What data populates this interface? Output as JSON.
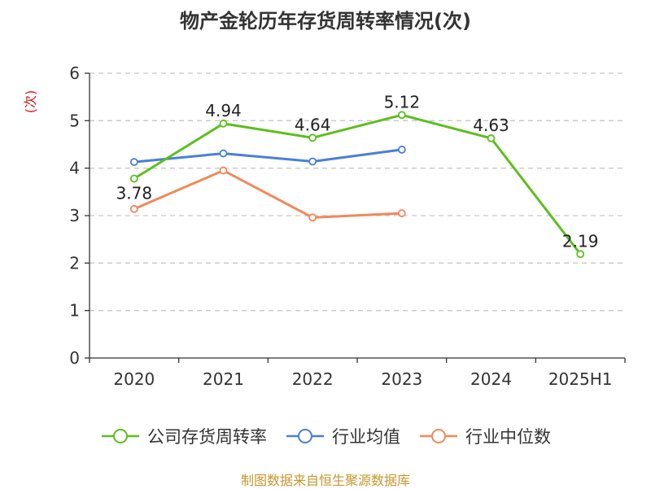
{
  "chart_data": {
    "type": "line",
    "title": "物产金轮历年存货周转率情况(次)",
    "ylabel": "(次)",
    "xlabel": "",
    "categories": [
      "2020",
      "2021",
      "2022",
      "2023",
      "2024",
      "2025H1"
    ],
    "ylim": [
      0,
      6
    ],
    "yticks": [
      0,
      1,
      2,
      3,
      4,
      5,
      6
    ],
    "grid": true,
    "legend_position": "bottom",
    "series": [
      {
        "name": "公司存货周转率",
        "values": [
          3.78,
          4.94,
          4.64,
          5.12,
          4.63,
          2.19
        ],
        "labels": [
          "3.78",
          "4.94",
          "4.64",
          "5.12",
          "4.63",
          "2.19"
        ],
        "color": "#5cbf1e"
      },
      {
        "name": "行业均值",
        "values": [
          4.13,
          4.31,
          4.14,
          4.39,
          null,
          null
        ],
        "color": "#4a7fd9"
      },
      {
        "name": "行业中位数",
        "values": [
          3.14,
          3.95,
          2.96,
          3.05,
          null,
          null
        ],
        "color": "#f2885a"
      }
    ]
  },
  "source_note": "制图数据来自恒生聚源数据库"
}
